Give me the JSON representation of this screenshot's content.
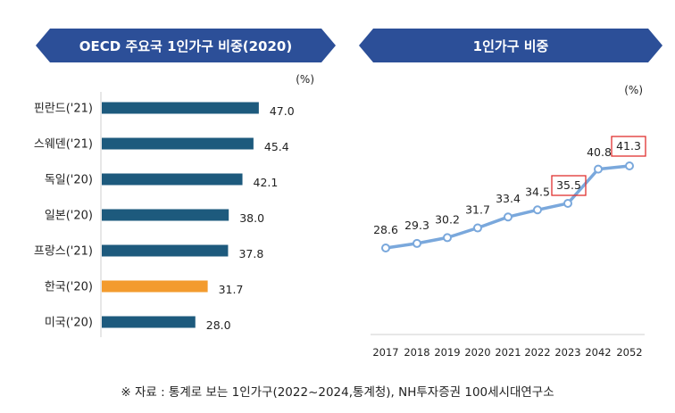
{
  "left_title": "OECD 주요국 1인가구 비중(2020)",
  "right_title": "1인가구 비중",
  "source": "※ 자료 : 통계로 보는 1인가구(2022~2024,통계청), NH투자증권 100세시대연구소",
  "colors": {
    "banner": "#2c4f98",
    "bar": "#1d5a7d",
    "bar_highlight": "#f39b2e",
    "line": "#7aa8dc",
    "box": "#e0312f"
  },
  "chart_data": [
    {
      "type": "bar",
      "orientation": "horizontal",
      "title": "OECD 주요국 1인가구 비중(2020)",
      "unit": "(%)",
      "categories": [
        "핀란드('21)",
        "스웨덴('21)",
        "독일('20)",
        "일본('20)",
        "프랑스('21)",
        "한국('20)",
        "미국('20)"
      ],
      "values": [
        47.0,
        45.4,
        42.1,
        38.0,
        37.8,
        31.7,
        28.0
      ],
      "labels": [
        "47.0",
        "45.4",
        "42.1",
        "38.0",
        "37.8",
        "31.7",
        "28.0"
      ],
      "highlight": "한국('20)",
      "xlim": [
        0,
        62
      ]
    },
    {
      "type": "line",
      "title": "1인가구 비중",
      "unit": "(%)",
      "x": [
        "2017",
        "2018",
        "2019",
        "2020",
        "2021",
        "2022",
        "2023",
        "2042",
        "2052"
      ],
      "values": [
        28.6,
        29.3,
        30.2,
        31.7,
        33.4,
        34.5,
        35.5,
        40.8,
        41.3
      ],
      "labels": [
        "28.6",
        "29.3",
        "30.2",
        "31.7",
        "33.4",
        "34.5",
        "35.5",
        "40.8",
        "41.3"
      ],
      "highlighted": [
        "2023",
        "2052"
      ],
      "ylim": [
        15,
        48
      ]
    }
  ]
}
